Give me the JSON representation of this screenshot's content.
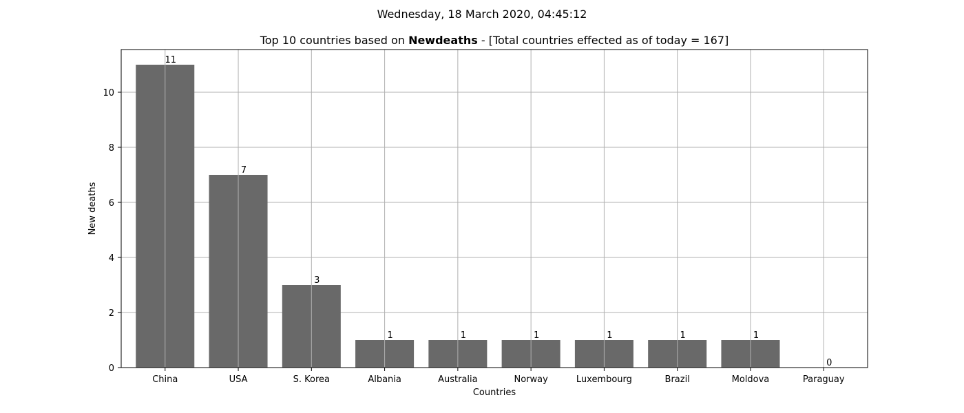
{
  "page": {
    "suptitle": "Wednesday, 18 March 2020, 04:45:12"
  },
  "chart_data": {
    "type": "bar",
    "title_prefix": "Top 10 countries based on ",
    "title_bold": "Newdeaths",
    "title_suffix": " - [Total countries effected as of today = 167]",
    "xlabel": "Countries",
    "ylabel": "New deaths",
    "categories": [
      "China",
      "USA",
      "S. Korea",
      "Albania",
      "Australia",
      "Norway",
      "Luxembourg",
      "Brazil",
      "Moldova",
      "Paraguay"
    ],
    "values": [
      11,
      7,
      3,
      1,
      1,
      1,
      1,
      1,
      1,
      0
    ],
    "value_labels": [
      "11",
      "7",
      "3",
      "1",
      "1",
      "1",
      "1",
      "1",
      "1",
      "0"
    ],
    "yticks": [
      0,
      2,
      4,
      6,
      8,
      10
    ],
    "ytick_labels": [
      "0",
      "2",
      "4",
      "6",
      "8",
      "10"
    ],
    "ylim": [
      0,
      11.55
    ],
    "grid": true,
    "bar_color": "#696969",
    "grid_color": "#b0b0b0",
    "legend": "none"
  }
}
